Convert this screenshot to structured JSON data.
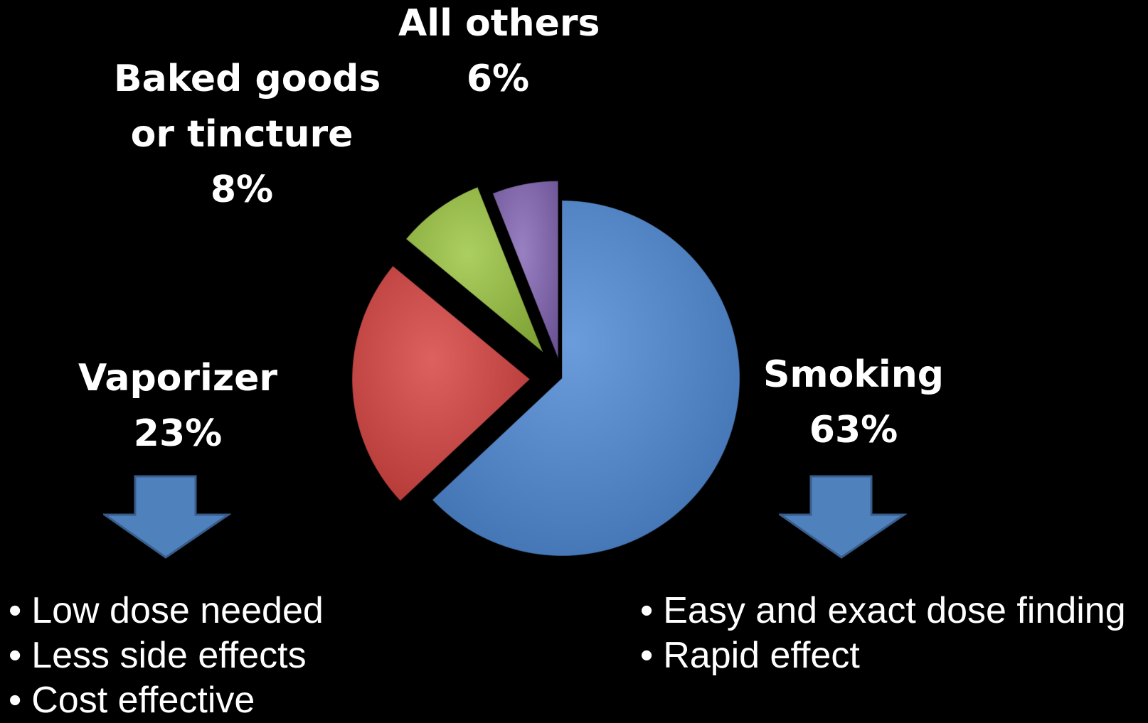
{
  "chart_data": {
    "type": "pie",
    "slices": [
      {
        "label_lines": [
          "Smoking"
        ],
        "value": 63,
        "value_text": "63%",
        "color": "#4a86d4"
      },
      {
        "label_lines": [
          "Vaporizer"
        ],
        "value": 23,
        "value_text": "23%",
        "color": "#d53f3c"
      },
      {
        "label_lines": [
          "Baked goods",
          "or tincture"
        ],
        "value": 8,
        "value_text": "8%",
        "color": "#9ac43e"
      },
      {
        "label_lines": [
          "All others"
        ],
        "value": 6,
        "value_text": "6%",
        "color": "#8264b4"
      }
    ],
    "start_angle_deg": 0,
    "direction": "clockwise",
    "exploded": true
  },
  "annotations": {
    "arrow_color": "#4f81bd",
    "vaporizer_points": [
      "Low dose needed",
      "Less side effects",
      "Cost effective"
    ],
    "smoking_points": [
      "Easy and exact dose finding",
      "Rapid effect"
    ]
  }
}
